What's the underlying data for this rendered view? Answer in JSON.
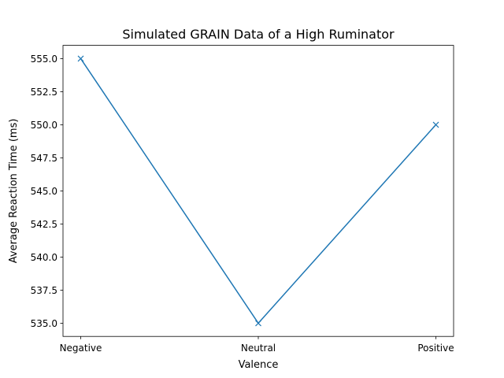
{
  "chart_data": {
    "type": "line",
    "title": "Simulated GRAIN Data of a High Ruminator",
    "xlabel": "Valence",
    "ylabel": "Average Reaction Time (ms)",
    "categories": [
      "Negative",
      "Neutral",
      "Positive"
    ],
    "series": [
      {
        "values": [
          555.0,
          535.0,
          550.0
        ]
      }
    ],
    "marker": "x",
    "ylim": [
      534.0,
      556.0
    ],
    "yticks": [
      535.0,
      537.5,
      540.0,
      542.5,
      545.0,
      547.5,
      550.0,
      552.5,
      555.0
    ],
    "ytick_labels": [
      "535.0",
      "537.5",
      "540.0",
      "542.5",
      "545.0",
      "547.5",
      "550.0",
      "552.5",
      "555.0"
    ],
    "grid": false,
    "colors": {
      "line": "#1f77b4",
      "axes": "#000000"
    }
  }
}
